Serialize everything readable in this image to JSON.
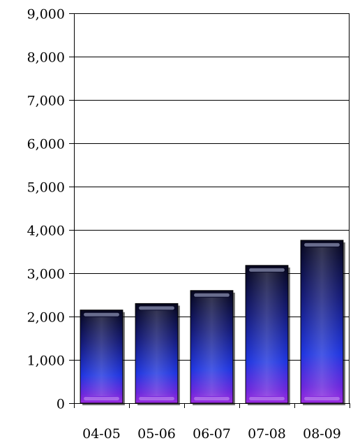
{
  "chart_data": {
    "type": "bar",
    "title": "",
    "xlabel": "",
    "ylabel": "",
    "categories": [
      "04-05",
      "05-06",
      "06-07",
      "07-08",
      "08-09"
    ],
    "values": [
      2150,
      2300,
      2600,
      3180,
      3760
    ],
    "ylim": [
      0,
      9000
    ],
    "yticks": [
      0,
      1000,
      2000,
      3000,
      4000,
      5000,
      6000,
      7000,
      8000,
      9000
    ],
    "ytick_labels": [
      "0",
      "1,000",
      "2,000",
      "3,000",
      "4,000",
      "5,000",
      "6,000",
      "7,000",
      "8,000",
      "9,000"
    ],
    "grid": true,
    "legend": "none",
    "colors": {
      "bar_top": "#0b0b2a",
      "bar_mid": "#1d2fd6",
      "bar_bottom": "#8a22d8",
      "grid": "#000000"
    }
  }
}
